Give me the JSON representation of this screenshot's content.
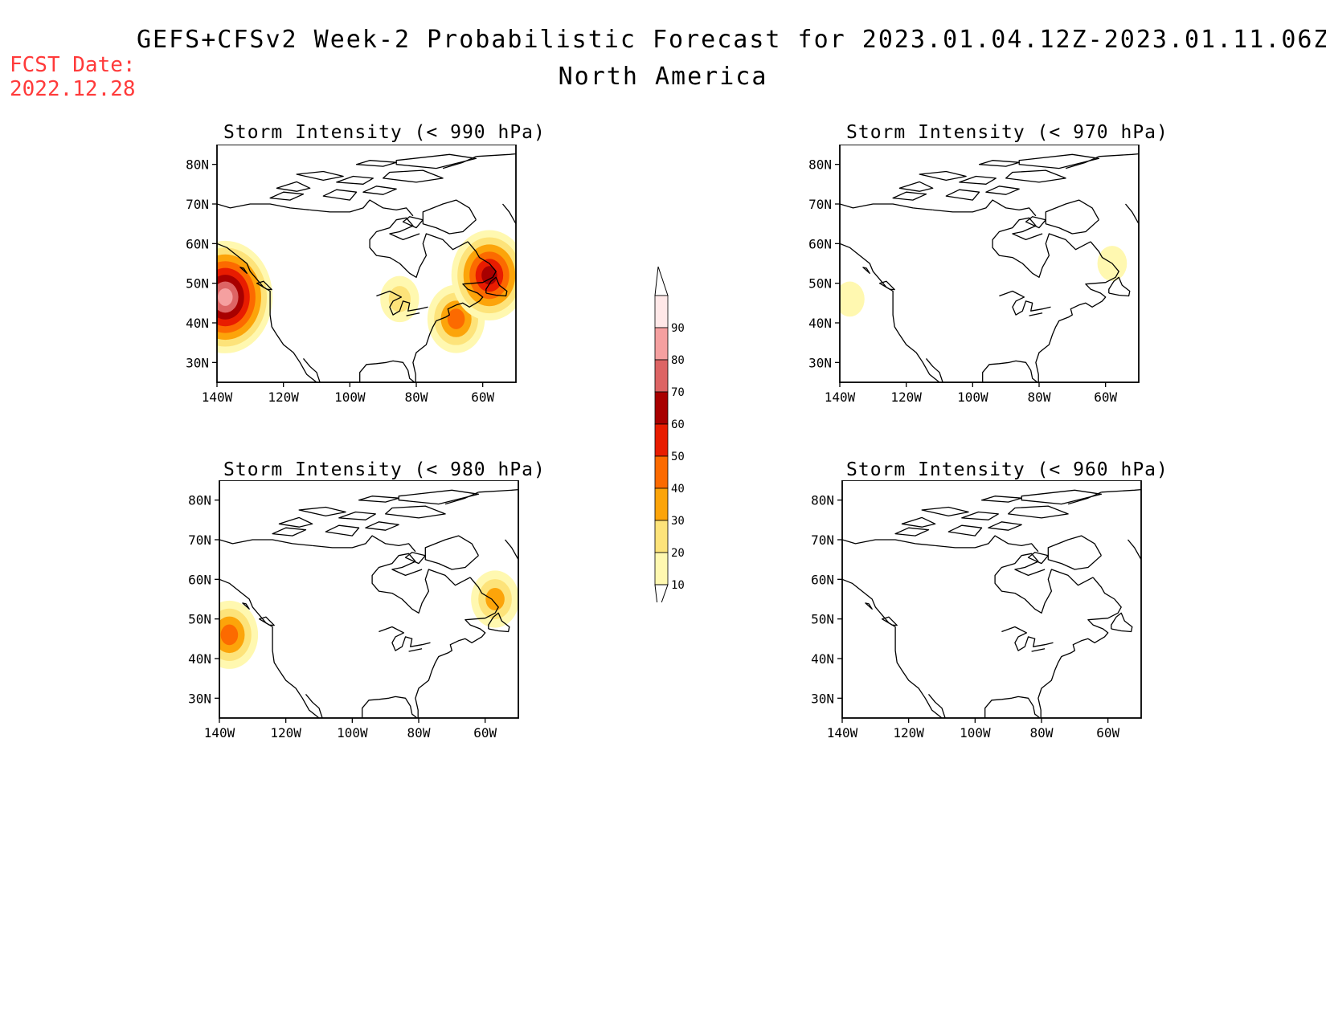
{
  "header": {
    "title": "GEFS+CFSv2 Week-2 Probabilistic Forecast for 2023.01.04.12Z-2023.01.11.06Z",
    "subtitle": "North America",
    "fcst_label": "FCST Date:",
    "fcst_date": "2022.12.28"
  },
  "colors": {
    "c10": "#fff8b0",
    "c20": "#fde37a",
    "c30": "#fca40a",
    "c40": "#fc6a00",
    "c50": "#e81c00",
    "c60": "#a80000",
    "c70": "#dd6464",
    "c80": "#f5a0a0",
    "c90": "#ffe8e8"
  },
  "colorbar": {
    "levels": [
      "10",
      "20",
      "30",
      "40",
      "50",
      "60",
      "70",
      "80",
      "90"
    ]
  },
  "axes": {
    "lat_labels": [
      "80N",
      "70N",
      "60N",
      "50N",
      "40N",
      "30N"
    ],
    "lon_labels": [
      "140W",
      "120W",
      "100W",
      "80W",
      "60W"
    ]
  },
  "panels": [
    {
      "id": "p990",
      "title": "Storm Intensity (< 990 hPa)",
      "blobs": [
        {
          "lon": -136,
          "lat": 45,
          "prob": 60,
          "kind": "cells",
          "cells": [
            [
              -140,
              55,
              -138,
              52
            ],
            [
              -140,
              52,
              -132,
              46
            ],
            [
              -140,
              46,
              -132,
              40
            ],
            [
              -140,
              40,
              -134,
              36
            ],
            [
              -132,
              50,
              -130,
              44
            ],
            [
              -130,
              48,
              -128,
              43
            ]
          ]
        },
        {
          "lon": -137.5,
          "lat": 46.5,
          "prob": 80
        },
        {
          "lon": -85,
          "lat": 46,
          "prob": 20
        },
        {
          "lon": -68,
          "lat": 41,
          "prob": 40
        },
        {
          "lon": -58,
          "lat": 52,
          "prob": 60
        }
      ]
    },
    {
      "id": "p970",
      "title": "Storm Intensity (< 970 hPa)",
      "blobs": [
        {
          "lon": -137,
          "lat": 46,
          "prob": 10
        },
        {
          "lon": -58,
          "lat": 55,
          "prob": 10
        }
      ]
    },
    {
      "id": "p980",
      "title": "Storm Intensity (< 980 hPa)",
      "blobs": [
        {
          "lon": -137,
          "lat": 46,
          "prob": 40
        },
        {
          "lon": -57,
          "lat": 55,
          "prob": 30
        }
      ]
    },
    {
      "id": "p960",
      "title": "Storm Intensity (< 960 hPa)",
      "blobs": []
    }
  ]
}
